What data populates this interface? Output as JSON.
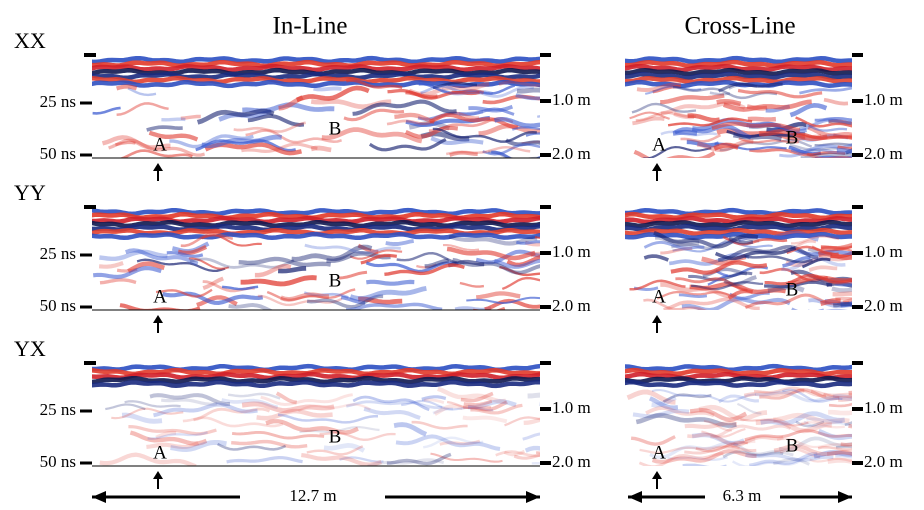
{
  "columns": [
    "In-Line",
    "Cross-Line"
  ],
  "rows": [
    "XX",
    "YY",
    "YX"
  ],
  "time_axis": [
    "25 ns",
    "50 ns"
  ],
  "depth_axis": [
    "1.0 m",
    "2.0 m"
  ],
  "markers": [
    "A",
    "B"
  ],
  "scales": [
    "12.7 m",
    "6.3 m"
  ]
}
